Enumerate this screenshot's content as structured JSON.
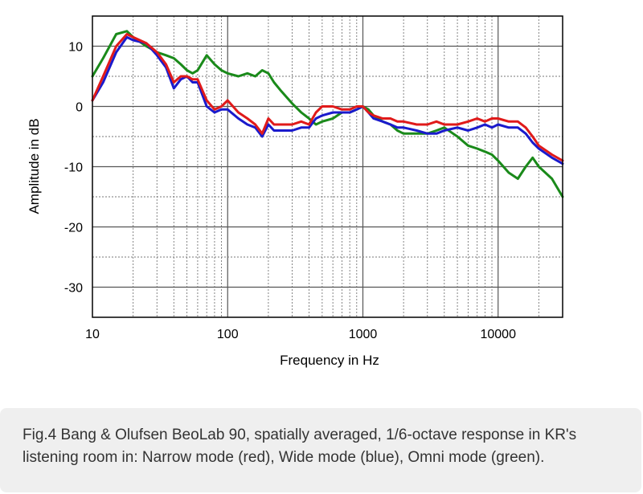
{
  "chart_data": {
    "type": "line",
    "xscale": "log",
    "xlim": [
      10,
      30000
    ],
    "ylim": [
      -35,
      15
    ],
    "xlabel": "Frequency in Hz",
    "ylabel": "Amplitude in dB",
    "x_ticks": [
      {
        "value": 10,
        "label": "10"
      },
      {
        "value": 100,
        "label": "100"
      },
      {
        "value": 1000,
        "label": "1000"
      },
      {
        "value": 10000,
        "label": "10000"
      }
    ],
    "y_ticks": [
      {
        "value": 10,
        "label": "10"
      },
      {
        "value": 0,
        "label": "0"
      },
      {
        "value": -10,
        "label": "-10"
      },
      {
        "value": -20,
        "label": "-20"
      },
      {
        "value": -30,
        "label": "-30"
      }
    ],
    "series": [
      {
        "name": "Narrow mode",
        "color": "#e01a1a",
        "x": [
          10,
          12,
          15,
          18,
          20,
          25,
          30,
          35,
          40,
          45,
          50,
          55,
          60,
          70,
          80,
          90,
          100,
          120,
          140,
          160,
          180,
          200,
          220,
          250,
          300,
          350,
          400,
          450,
          500,
          600,
          700,
          800,
          900,
          1000,
          1100,
          1200,
          1400,
          1600,
          1800,
          2000,
          2500,
          3000,
          3500,
          4000,
          5000,
          6000,
          7000,
          8000,
          9000,
          10000,
          12000,
          14000,
          16000,
          18000,
          20000,
          25000,
          30000
        ],
        "values": [
          1,
          5,
          10,
          12,
          11.5,
          10.5,
          9,
          7,
          4,
          5,
          5,
          4.5,
          4.5,
          1,
          -0.5,
          0,
          1,
          -1,
          -2,
          -3,
          -4.5,
          -2,
          -3,
          -3,
          -3,
          -2.5,
          -3,
          -1,
          0,
          0,
          -0.5,
          -0.5,
          0,
          0,
          -1,
          -1.5,
          -2,
          -2,
          -2.5,
          -2.5,
          -3,
          -3,
          -2.5,
          -3,
          -3,
          -2.5,
          -2,
          -2.5,
          -2,
          -2,
          -2.5,
          -2.5,
          -3.5,
          -5,
          -6.5,
          -8,
          -9
        ]
      },
      {
        "name": "Wide mode",
        "color": "#1a1acc",
        "x": [
          10,
          12,
          15,
          18,
          20,
          25,
          30,
          35,
          40,
          45,
          50,
          55,
          60,
          70,
          80,
          90,
          100,
          120,
          140,
          160,
          180,
          200,
          220,
          250,
          300,
          350,
          400,
          450,
          500,
          600,
          700,
          800,
          900,
          1000,
          1100,
          1200,
          1400,
          1600,
          1800,
          2000,
          2500,
          3000,
          3500,
          4000,
          5000,
          6000,
          7000,
          8000,
          9000,
          10000,
          12000,
          14000,
          16000,
          18000,
          20000,
          25000,
          30000
        ],
        "values": [
          1,
          4,
          9,
          11.5,
          11,
          10.5,
          8.5,
          6.5,
          3,
          4.5,
          5,
          4,
          4,
          0,
          -1,
          -0.5,
          -0.5,
          -2,
          -3,
          -3.5,
          -5,
          -3,
          -4,
          -4,
          -4,
          -3.5,
          -3.5,
          -2,
          -1.5,
          -1,
          -1,
          -1,
          -0.5,
          0,
          -1,
          -2,
          -2.5,
          -3,
          -3.5,
          -3.5,
          -4,
          -4.5,
          -4.5,
          -4,
          -3.5,
          -4,
          -3.5,
          -3,
          -3.5,
          -3,
          -3.5,
          -3.5,
          -4.5,
          -6,
          -7,
          -8.5,
          -9.5
        ]
      },
      {
        "name": "Omni mode",
        "color": "#1a8a1a",
        "x": [
          10,
          12,
          15,
          18,
          20,
          25,
          30,
          35,
          40,
          45,
          50,
          55,
          60,
          70,
          80,
          90,
          100,
          120,
          140,
          160,
          180,
          200,
          220,
          250,
          300,
          350,
          400,
          450,
          500,
          600,
          700,
          800,
          900,
          1000,
          1100,
          1200,
          1400,
          1600,
          1800,
          2000,
          2500,
          3000,
          3500,
          4000,
          5000,
          6000,
          7000,
          8000,
          9000,
          10000,
          12000,
          14000,
          16000,
          18000,
          20000,
          25000,
          30000
        ],
        "values": [
          5,
          8,
          12,
          12.5,
          11.5,
          10,
          9,
          8.5,
          8,
          7,
          6,
          5.5,
          6,
          8.5,
          7,
          6,
          5.5,
          5,
          5.5,
          5,
          6,
          5.5,
          4,
          2.5,
          0.5,
          -1,
          -2,
          -3,
          -2.5,
          -2,
          -1,
          -1,
          -0.5,
          0,
          -0.5,
          -1.5,
          -2.5,
          -3,
          -4,
          -4.5,
          -4.5,
          -4.5,
          -4,
          -3.5,
          -5,
          -6.5,
          -7,
          -7.5,
          -8,
          -9,
          -11,
          -12,
          -10,
          -8.5,
          -10,
          -12,
          -15
        ]
      }
    ]
  },
  "caption": {
    "line1": "Fig.4 Bang & Olufsen BeoLab 90, spatially averaged, 1/6-octave response in KR's",
    "line2": "listening room in: Narrow mode (red), Wide mode (blue), Omni mode (green)."
  }
}
